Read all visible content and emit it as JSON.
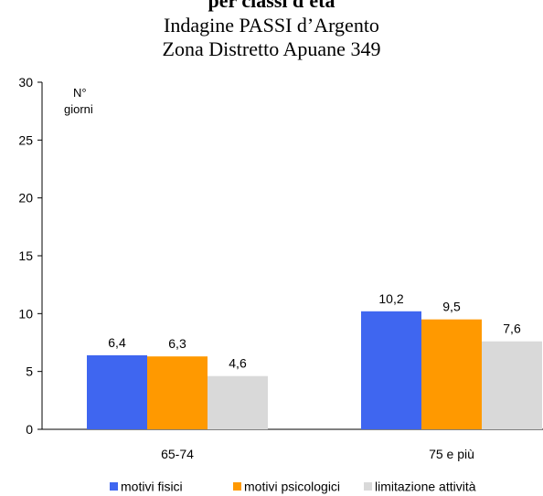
{
  "chart_data": {
    "type": "bar",
    "title_lines": [
      "per classi d'età",
      "Indagine PASSI d’Argento",
      "Zona Distretto Apuane 349"
    ],
    "y_unit_label": [
      "N°",
      "giorni"
    ],
    "ylim": [
      0,
      30
    ],
    "yticks": [
      0,
      5,
      10,
      15,
      20,
      25,
      30
    ],
    "categories": [
      "65-74",
      "75 e più"
    ],
    "series": [
      {
        "name": "motivi fisici",
        "color": "#3f66f0",
        "values": [
          6.4,
          10.2
        ],
        "labels": [
          "6,4",
          "10,2"
        ]
      },
      {
        "name": "motivi psicologici",
        "color": "#ff9900",
        "values": [
          6.3,
          9.5
        ],
        "labels": [
          "6,3",
          "9,5"
        ]
      },
      {
        "name": "limitazione attività",
        "color": "#d9d9d9",
        "values": [
          4.6,
          7.6
        ],
        "labels": [
          "4,6",
          "7,6"
        ]
      }
    ],
    "legend_position": "bottom",
    "grid": false
  }
}
